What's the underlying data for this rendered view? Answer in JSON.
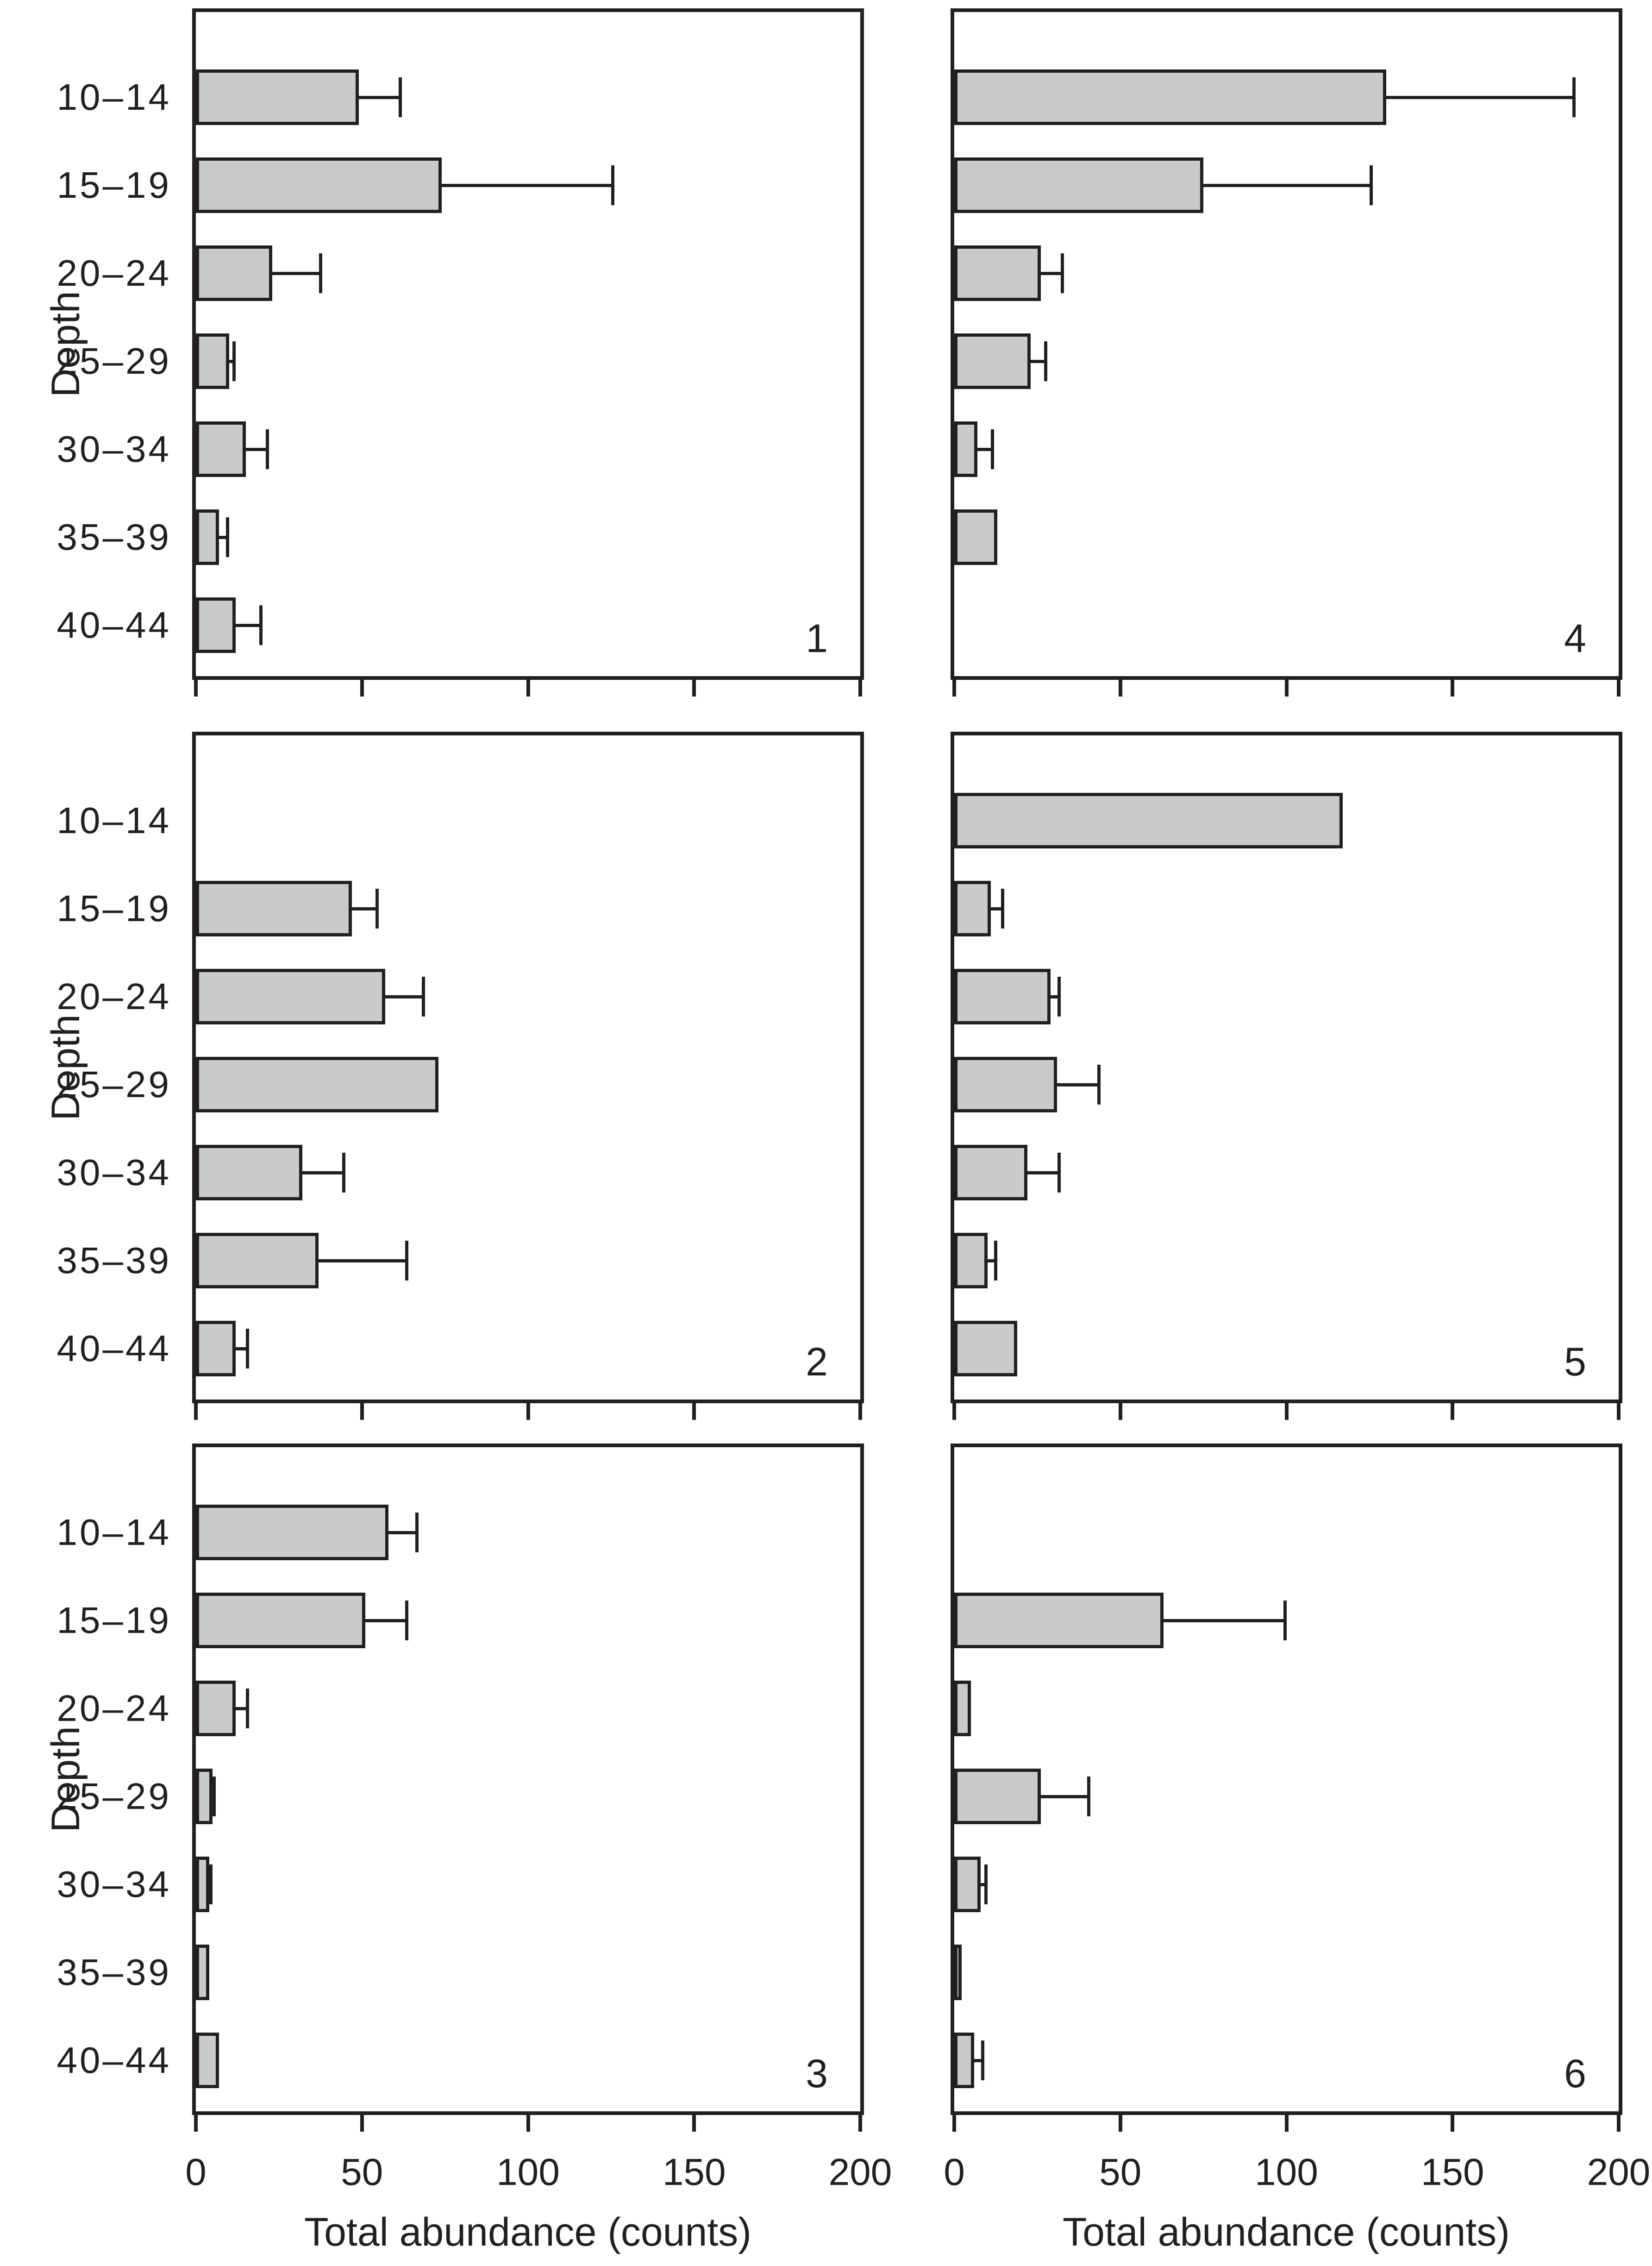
{
  "figure_title": "",
  "axis": {
    "x_label": "Total abundance (counts)",
    "y_label": "Depth",
    "x_tick_labels": [
      "0",
      "50",
      "100",
      "150",
      "200"
    ]
  },
  "chart_data": {
    "type": "bar",
    "orientation": "horizontal",
    "title": "",
    "xlabel": "Total abundance (counts)",
    "ylabel": "Depth",
    "categories": [
      "10–14",
      "15–19",
      "20–24",
      "25–29",
      "30–34",
      "35–39",
      "40–44"
    ],
    "xlim": [
      0,
      200
    ],
    "x_ticks": [
      0,
      50,
      100,
      150,
      200
    ],
    "grid": false,
    "legend": "none",
    "bar_color": "#c9cacb",
    "line_color": "#231f20",
    "error_bars": "upper, with end caps",
    "panels": [
      {
        "label": "1",
        "column": "left",
        "row": 0,
        "values": [
          49,
          74,
          23,
          10,
          15,
          7,
          12
        ],
        "errors": [
          13,
          52,
          15,
          2,
          7,
          3,
          8
        ]
      },
      {
        "label": "2",
        "column": "left",
        "row": 1,
        "values": [
          0,
          47,
          57,
          73,
          32,
          37,
          12
        ],
        "errors": [
          0,
          8,
          12,
          0,
          13,
          27,
          4
        ]
      },
      {
        "label": "3",
        "column": "left",
        "row": 2,
        "values": [
          58,
          51,
          12,
          5,
          4,
          4,
          7
        ],
        "errors": [
          9,
          13,
          4,
          1,
          1,
          0,
          0
        ]
      },
      {
        "label": "4",
        "column": "right",
        "row": 0,
        "values": [
          130,
          75,
          26,
          23,
          7,
          13,
          0
        ],
        "errors": [
          57,
          51,
          7,
          5,
          5,
          0,
          0
        ]
      },
      {
        "label": "5",
        "column": "right",
        "row": 1,
        "values": [
          117,
          11,
          29,
          31,
          22,
          10,
          19
        ],
        "errors": [
          0,
          4,
          3,
          13,
          10,
          3,
          0
        ]
      },
      {
        "label": "6",
        "column": "right",
        "row": 2,
        "values": [
          0,
          63,
          5,
          26,
          8,
          2,
          6
        ],
        "errors": [
          0,
          37,
          0,
          15,
          2,
          0,
          3
        ]
      }
    ]
  }
}
